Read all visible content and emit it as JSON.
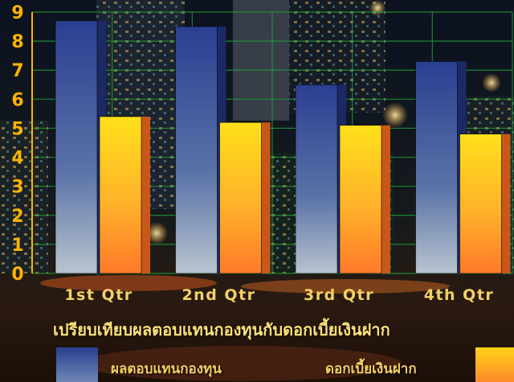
{
  "chart_data": {
    "type": "bar",
    "title": "เปรียบเทียบผลตอบแทนกองทุนกับดอกเบี้ยเงินฝาก",
    "categories": [
      "1st Qtr",
      "2nd Qtr",
      "3rd Qtr",
      "4th Qtr"
    ],
    "series": [
      {
        "name": "ผลตอบแทนกองทุน",
        "values": [
          8.7,
          8.5,
          6.5,
          7.3
        ],
        "color": "#3a5aa8"
      },
      {
        "name": "ดอกเบี้ยเงินฝาก",
        "values": [
          5.4,
          5.2,
          5.1,
          4.8
        ],
        "color": "#ffc21a"
      }
    ],
    "ylim": [
      0,
      9
    ],
    "yticks": [
      "0",
      "1",
      "2",
      "3",
      "4",
      "5",
      "6",
      "7",
      "8",
      "9"
    ],
    "grid": true,
    "legend": "bottom",
    "colors": {
      "gridline": "#1fa33a",
      "tick_text": "#ffb300",
      "category_text": "#f3d067"
    }
  }
}
